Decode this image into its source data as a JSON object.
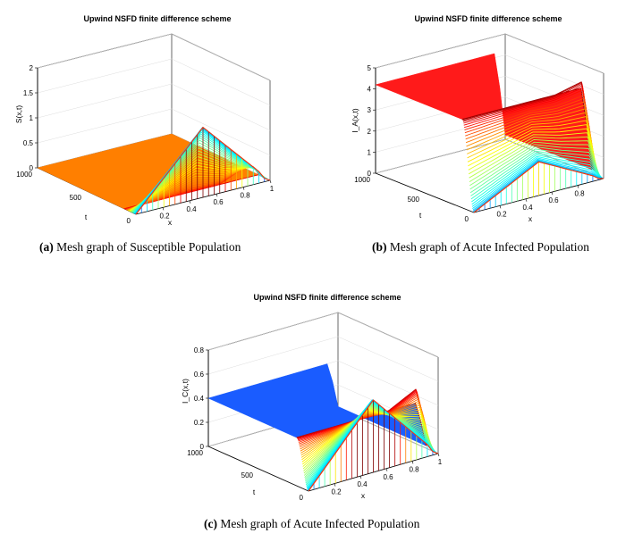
{
  "figures": [
    {
      "id": "a",
      "caption_tag": "(a)",
      "caption_text": "Mesh graph of Susceptible Population",
      "chart_data": {
        "type": "surface3d",
        "title": "Upwind NSFD finite difference scheme",
        "xlabel": "x",
        "ylabel": "t",
        "zlabel": "S(x,t)",
        "xticks": [
          "0.2",
          "0.4",
          "0.6",
          "0.8",
          "1"
        ],
        "yticks": [
          "0",
          "500",
          "1000"
        ],
        "zticks": [
          "0",
          "0.5",
          "1",
          "1.5",
          "2"
        ],
        "xlim": [
          0,
          1
        ],
        "ylim": [
          0,
          1000
        ],
        "zlim": [
          0,
          2
        ],
        "initial_peak": {
          "x": 0.5,
          "value": 1.4
        },
        "plateau_value": 0.0,
        "plateau_color": "#ff7f00"
      }
    },
    {
      "id": "b",
      "caption_tag": "(b)",
      "caption_text": "Mesh graph of Acute Infected Population",
      "chart_data": {
        "type": "surface3d",
        "title": "Upwind NSFD finite difference scheme",
        "xlabel": "x",
        "ylabel": "t",
        "zlabel": "I_A(x,t)",
        "xticks": [
          "0.2",
          "0.4",
          "0.6",
          "0.8"
        ],
        "yticks": [
          "0",
          "500",
          "1000"
        ],
        "zticks": [
          "0",
          "1",
          "2",
          "3",
          "4",
          "5"
        ],
        "xlim": [
          0,
          1
        ],
        "ylim": [
          0,
          1000
        ],
        "zlim": [
          0,
          5
        ],
        "initial_peak": {
          "x": 0.5,
          "value": 1.6
        },
        "plateau_value": 4.2,
        "plateau_color": "#ff1a1a"
      }
    },
    {
      "id": "c",
      "caption_tag": "(c)",
      "caption_text": "Mesh graph of Acute Infected Population",
      "chart_data": {
        "type": "surface3d",
        "title": "Upwind NSFD finite difference scheme",
        "xlabel": "x",
        "ylabel": "t",
        "zlabel": "I_C(x,t)",
        "xticks": [
          "0.2",
          "0.4",
          "0.6",
          "0.8",
          "1"
        ],
        "yticks": [
          "0",
          "500",
          "1000"
        ],
        "zticks": [
          "0",
          "0.2",
          "0.4",
          "0.6",
          "0.8"
        ],
        "xlim": [
          0,
          1
        ],
        "ylim": [
          0,
          1000
        ],
        "zlim": [
          0,
          0.8
        ],
        "initial_peak": {
          "x": 0.5,
          "value": 0.6
        },
        "plateau_value": 0.4,
        "plateau_color": "#1a5cff"
      }
    }
  ]
}
